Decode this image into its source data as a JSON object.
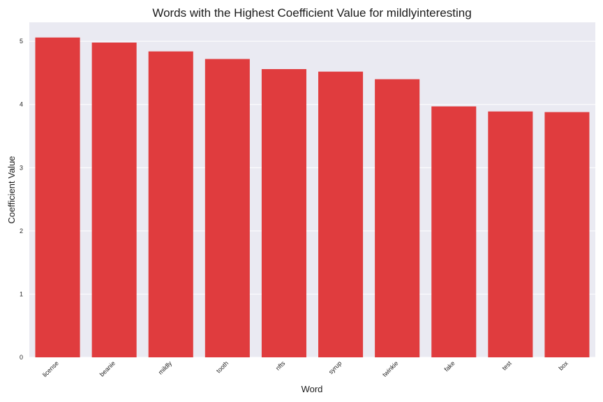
{
  "chart_data": {
    "type": "bar",
    "title": "Words with the Highest Coefficient Value for mildlyinteresting",
    "xlabel": "Word",
    "ylabel": "Coefficient Value",
    "categories": [
      "license",
      "beanie",
      "mildly",
      "tooth",
      "nfts",
      "syrup",
      "twinkie",
      "fake",
      "test",
      "box"
    ],
    "values": [
      5.06,
      4.98,
      4.84,
      4.72,
      4.56,
      4.52,
      4.4,
      3.97,
      3.89,
      3.88
    ],
    "ylim": [
      0,
      5.3
    ],
    "yticks": [
      0,
      1,
      2,
      3,
      4,
      5
    ],
    "grid": true,
    "colors": {
      "bar": "#e03c3e",
      "plot_background": "#eaeaf2",
      "grid": "#ffffff"
    }
  }
}
